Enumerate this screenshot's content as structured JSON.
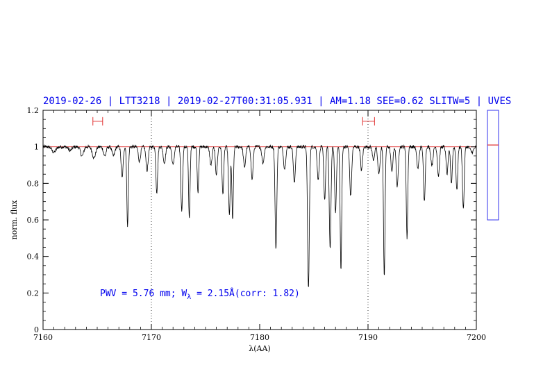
{
  "chart_data": {
    "type": "line",
    "title": "2019-02-26 | LTT3218 | 2019-02-27T00:31:05.931 | AM=1.18  SEE=0.62  SLITW=5 | UVES",
    "xlabel": "λ(AA)",
    "ylabel": "norm. flux",
    "xlim": [
      7160,
      7200
    ],
    "ylim": [
      0,
      1.2
    ],
    "x_ticks": [
      7160,
      7170,
      7180,
      7190,
      7200
    ],
    "x_tick_labels": [
      "7160",
      "7170",
      "7180",
      "7190",
      "7200"
    ],
    "y_ticks": [
      0,
      0.2,
      0.4,
      0.6,
      0.8,
      1,
      1.2
    ],
    "y_tick_labels": [
      "0",
      "0.2",
      "0.4",
      "0.6",
      "0.8",
      "1",
      "1.2"
    ],
    "vertical_dotted_lines_x": [
      7170,
      7190
    ],
    "continuum_level": 1.0,
    "continuum_windows": [
      [
        7164.6,
        7165.5
      ],
      [
        7189.5,
        7190.6
      ]
    ],
    "continuum_window_y": 1.14,
    "annotation": {
      "prefix": "PWV = 5.76 mm; W",
      "subscript": "λ",
      "suffix": " = 2.15Å(corr: 1.82)"
    },
    "series": [
      {
        "color": "#000000",
        "continuum": 1.0,
        "lines": [
          [
            7161.0,
            0.03,
            0.18
          ],
          [
            7162.5,
            0.02,
            0.15
          ],
          [
            7163.6,
            0.05,
            0.14
          ],
          [
            7164.7,
            0.06,
            0.15
          ],
          [
            7165.7,
            0.05,
            0.12
          ],
          [
            7166.5,
            0.05,
            0.12
          ],
          [
            7167.3,
            0.17,
            0.09
          ],
          [
            7167.8,
            0.43,
            0.07
          ],
          [
            7168.9,
            0.08,
            0.1
          ],
          [
            7169.6,
            0.13,
            0.1
          ],
          [
            7170.5,
            0.25,
            0.08
          ],
          [
            7171.2,
            0.09,
            0.1
          ],
          [
            7172.0,
            0.1,
            0.1
          ],
          [
            7172.8,
            0.35,
            0.08
          ],
          [
            7173.5,
            0.39,
            0.07
          ],
          [
            7174.3,
            0.25,
            0.07
          ],
          [
            7175.5,
            0.1,
            0.1
          ],
          [
            7176.0,
            0.15,
            0.09
          ],
          [
            7176.6,
            0.26,
            0.08
          ],
          [
            7177.2,
            0.37,
            0.08
          ],
          [
            7177.5,
            0.4,
            0.07
          ],
          [
            7178.6,
            0.11,
            0.1
          ],
          [
            7179.3,
            0.18,
            0.09
          ],
          [
            7180.3,
            0.09,
            0.1
          ],
          [
            7181.5,
            0.56,
            0.08
          ],
          [
            7182.3,
            0.12,
            0.1
          ],
          [
            7183.2,
            0.2,
            0.09
          ],
          [
            7184.5,
            0.78,
            0.08
          ],
          [
            7185.4,
            0.18,
            0.09
          ],
          [
            7186.0,
            0.29,
            0.08
          ],
          [
            7186.5,
            0.56,
            0.08
          ],
          [
            7187.0,
            0.36,
            0.08
          ],
          [
            7187.5,
            0.68,
            0.07
          ],
          [
            7188.4,
            0.27,
            0.09
          ],
          [
            7189.4,
            0.13,
            0.09
          ],
          [
            7190.5,
            0.07,
            0.1
          ],
          [
            7191.0,
            0.15,
            0.1
          ],
          [
            7191.5,
            0.71,
            0.07
          ],
          [
            7192.2,
            0.14,
            0.09
          ],
          [
            7192.7,
            0.22,
            0.09
          ],
          [
            7193.6,
            0.5,
            0.07
          ],
          [
            7194.6,
            0.12,
            0.1
          ],
          [
            7195.2,
            0.3,
            0.08
          ],
          [
            7195.9,
            0.1,
            0.1
          ],
          [
            7196.5,
            0.16,
            0.09
          ],
          [
            7197.3,
            0.15,
            0.09
          ],
          [
            7197.7,
            0.2,
            0.08
          ],
          [
            7198.2,
            0.24,
            0.08
          ],
          [
            7198.8,
            0.34,
            0.08
          ],
          [
            7199.6,
            0.03,
            0.14
          ]
        ]
      }
    ]
  },
  "side_panel": {
    "continuum_marker_y": 1.01,
    "ylim": [
      0.6,
      1.2
    ]
  }
}
